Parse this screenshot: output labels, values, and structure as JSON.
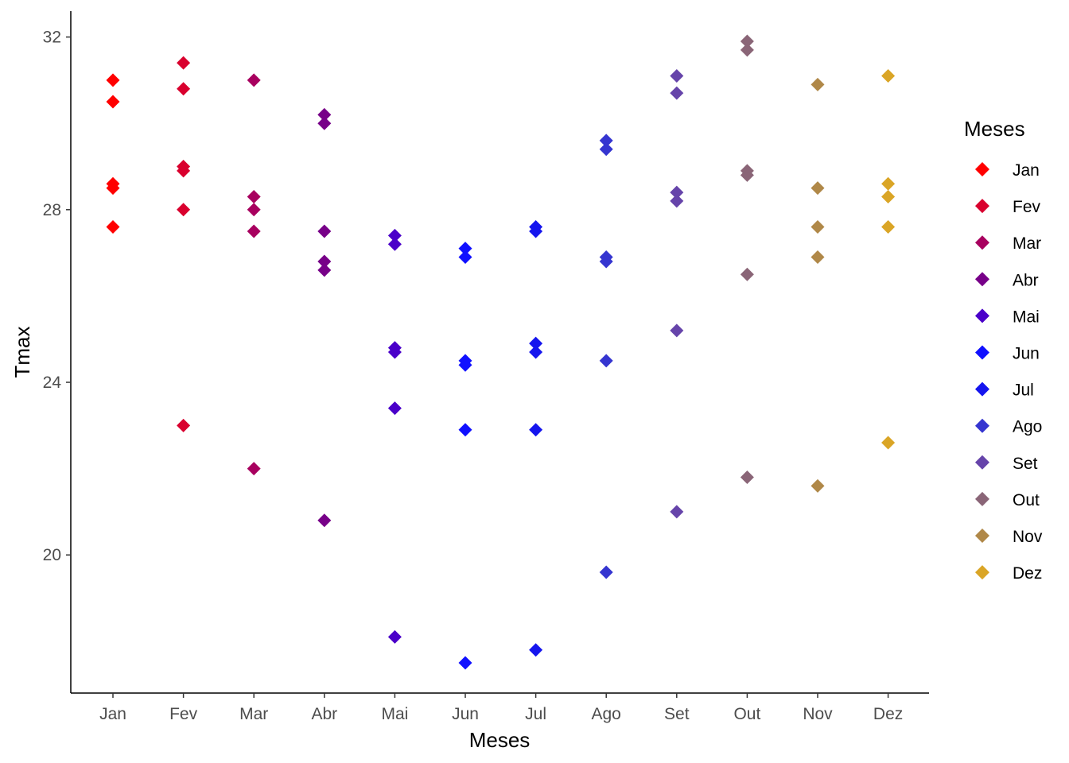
{
  "chart_data": {
    "type": "scatter",
    "title": "",
    "xlabel": "Meses",
    "ylabel": "Tmax",
    "categories": [
      "Jan",
      "Fev",
      "Mar",
      "Abr",
      "Mai",
      "Jun",
      "Jul",
      "Ago",
      "Set",
      "Out",
      "Nov",
      "Dez"
    ],
    "ylim": [
      16.8,
      32.6
    ],
    "yticks": [
      20,
      24,
      28,
      32
    ],
    "grid": false,
    "marker": "diamond",
    "legend": {
      "title": "Meses",
      "position": "right"
    },
    "series": [
      {
        "name": "Jan",
        "color": "#ff0000",
        "values": [
          31.0,
          30.5,
          28.6,
          28.5,
          27.6
        ]
      },
      {
        "name": "Fev",
        "color": "#d9002e",
        "values": [
          31.4,
          30.8,
          29.0,
          28.9,
          28.0,
          23.0
        ]
      },
      {
        "name": "Mar",
        "color": "#a8005f",
        "values": [
          31.0,
          28.3,
          28.0,
          27.5,
          22.0
        ]
      },
      {
        "name": "Abr",
        "color": "#770088",
        "values": [
          30.2,
          30.0,
          27.5,
          26.8,
          26.6,
          20.8
        ]
      },
      {
        "name": "Mai",
        "color": "#4a00c9",
        "values": [
          27.4,
          27.2,
          24.8,
          24.7,
          23.4,
          18.1
        ]
      },
      {
        "name": "Jun",
        "color": "#1010ff",
        "values": [
          27.1,
          26.9,
          24.5,
          24.4,
          22.9,
          17.5
        ]
      },
      {
        "name": "Jul",
        "color": "#1515ee",
        "values": [
          27.6,
          27.5,
          24.9,
          24.7,
          22.9,
          17.8
        ]
      },
      {
        "name": "Ago",
        "color": "#3535d0",
        "values": [
          29.6,
          29.4,
          26.9,
          26.8,
          24.5,
          19.6
        ]
      },
      {
        "name": "Set",
        "color": "#6644aa",
        "values": [
          31.1,
          30.7,
          28.4,
          28.2,
          25.2,
          21.0
        ]
      },
      {
        "name": "Out",
        "color": "#8a6577",
        "values": [
          31.9,
          31.7,
          28.9,
          28.8,
          26.5,
          21.8
        ]
      },
      {
        "name": "Nov",
        "color": "#b08848",
        "values": [
          30.9,
          28.5,
          27.6,
          26.9,
          21.6
        ]
      },
      {
        "name": "Dez",
        "color": "#daa526",
        "values": [
          31.1,
          28.6,
          28.3,
          27.6,
          22.6
        ]
      }
    ]
  }
}
